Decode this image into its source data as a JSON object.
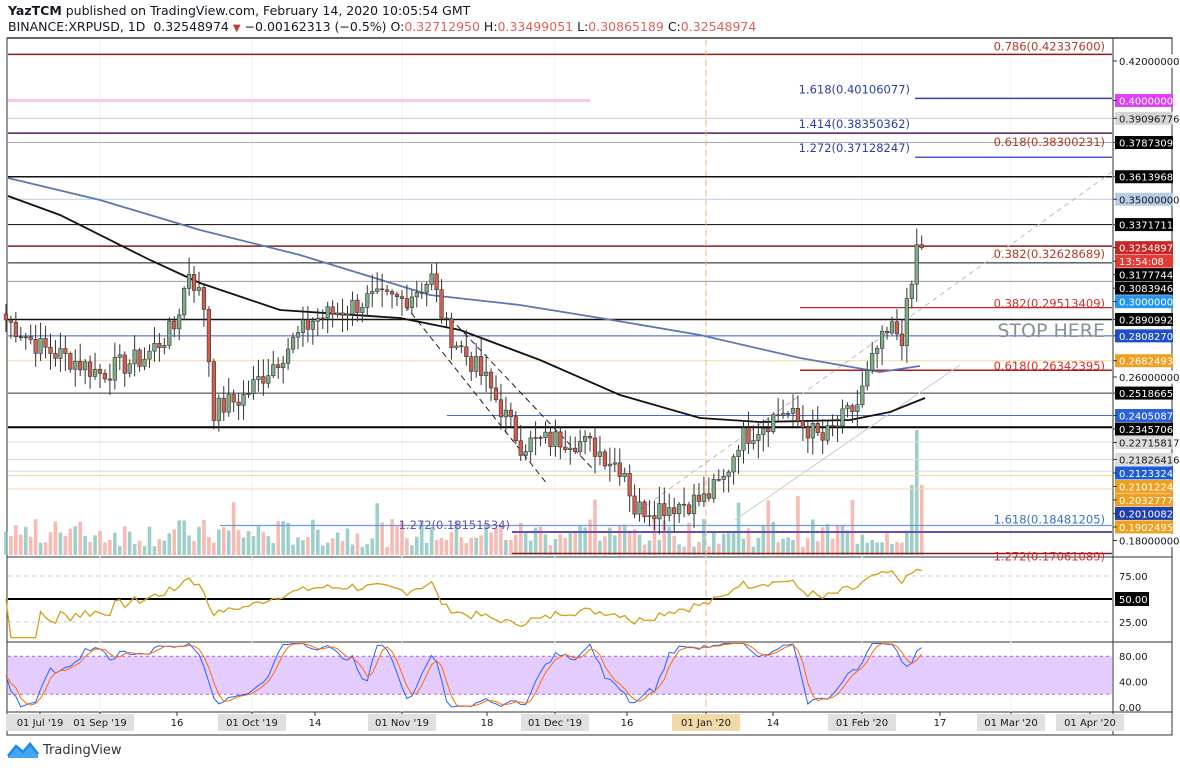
{
  "header": {
    "publisher": "YazTCM",
    "published_text": "published on TradingView.com, February 14, 2020 10:05:54 GMT",
    "symbol": "BINANCE:XRPUSD, 1D",
    "last": "0.32548974",
    "change": "−0.00162313 (−0.5%)",
    "o_label": "O:",
    "o": "0.32712950",
    "h_label": "H:",
    "h": "0.33499051",
    "l_label": "L:",
    "l": "0.30865189",
    "c_label": "C:",
    "c": "0.32548974"
  },
  "chart_data": {
    "type": "candlestick",
    "symbol": "XRPUSD",
    "interval": "1D",
    "close_waypoints": [
      [
        "2019-08-13",
        0.289
      ],
      [
        "2019-08-20",
        0.275
      ],
      [
        "2019-08-27",
        0.268
      ],
      [
        "2019-09-01",
        0.262
      ],
      [
        "2019-09-10",
        0.27
      ],
      [
        "2019-09-16",
        0.285
      ],
      [
        "2019-09-19",
        0.314
      ],
      [
        "2019-09-22",
        0.296
      ],
      [
        "2019-09-24",
        0.243
      ],
      [
        "2019-09-30",
        0.25
      ],
      [
        "2019-10-10",
        0.278
      ],
      [
        "2019-10-14",
        0.289
      ],
      [
        "2019-10-20",
        0.294
      ],
      [
        "2019-10-25",
        0.299
      ],
      [
        "2019-11-01",
        0.299
      ],
      [
        "2019-11-07",
        0.31
      ],
      [
        "2019-11-10",
        0.284
      ],
      [
        "2019-11-18",
        0.258
      ],
      [
        "2019-11-25",
        0.226
      ],
      [
        "2019-12-01",
        0.228
      ],
      [
        "2019-12-05",
        0.229
      ],
      [
        "2019-12-10",
        0.224
      ],
      [
        "2019-12-16",
        0.213
      ],
      [
        "2019-12-18",
        0.193
      ],
      [
        "2019-12-25",
        0.195
      ],
      [
        "2020-01-01",
        0.198
      ],
      [
        "2020-01-05",
        0.208
      ],
      [
        "2020-01-08",
        0.228
      ],
      [
        "2020-01-14",
        0.238
      ],
      [
        "2020-01-17",
        0.243
      ],
      [
        "2020-01-25",
        0.228
      ],
      [
        "2020-02-01",
        0.246
      ],
      [
        "2020-02-05",
        0.274
      ],
      [
        "2020-02-08",
        0.284
      ],
      [
        "2020-02-10",
        0.281
      ],
      [
        "2020-02-12",
        0.307
      ],
      [
        "2020-02-13",
        0.327
      ],
      [
        "2020-02-14",
        0.3255
      ]
    ],
    "current_price": "0.32548974",
    "countdown": "13:54:08",
    "annotation": "STOP HERE",
    "price_levels": [
      {
        "price": 0.42,
        "label": "0.42000000",
        "bg": "#ffffff",
        "fg": "#131722"
      },
      {
        "price": 0.4,
        "label": "0.40000000",
        "bg": "#e040fb",
        "fg": "#ffffff"
      },
      {
        "price": 0.39096776,
        "label": "0.39096776",
        "bg": "#d6d6d6",
        "fg": "#131722"
      },
      {
        "price": 0.37873092,
        "label": "0.37873092",
        "bg": "#000000",
        "fg": "#ffffff"
      },
      {
        "price": 0.36139684,
        "label": "0.36139684",
        "bg": "#000000",
        "fg": "#ffffff"
      },
      {
        "price": 0.35,
        "label": "0.35000000",
        "bg": "#b6cde6",
        "fg": "#131722"
      },
      {
        "price": 0.33717116,
        "label": "0.33717116",
        "bg": "#000000",
        "fg": "#ffffff"
      },
      {
        "price": 0.32548974,
        "label": "0.32548974",
        "bg": "#c62828",
        "fg": "#ffffff"
      },
      {
        "price": 0.3215,
        "label": "13:54:08",
        "bg": "#e53935",
        "fg": "#ffffff"
      },
      {
        "price": 0.31777446,
        "label": "0.31777446",
        "bg": "#000000",
        "fg": "#ffffff"
      },
      {
        "price": 0.30839463,
        "label": "0.30839463",
        "bg": "#000000",
        "fg": "#ffffff"
      },
      {
        "price": 0.3,
        "label": "0.30000000",
        "bg": "#2196f3",
        "fg": "#ffffff"
      },
      {
        "price": 0.2890992,
        "label": "0.28909920",
        "bg": "#000000",
        "fg": "#ffffff"
      },
      {
        "price": 0.28082708,
        "label": "0.28082708",
        "bg": "#1e4fc8",
        "fg": "#ffffff"
      },
      {
        "price": 0.26824935,
        "label": "0.26824935",
        "bg": "#f0a020",
        "fg": "#ffffff"
      },
      {
        "price": 0.26,
        "label": "0.26000000",
        "bg": "#ffffff",
        "fg": "#131722"
      },
      {
        "price": 0.25186656,
        "label": "0.25186656",
        "bg": "#000000",
        "fg": "#ffffff"
      },
      {
        "price": 0.2405087,
        "label": "0.24050870",
        "bg": "#2962d9",
        "fg": "#ffffff"
      },
      {
        "price": 0.23457062,
        "label": "0.23457062",
        "bg": "#000000",
        "fg": "#ffffff"
      },
      {
        "price": 0.22715817,
        "label": "0.22715817",
        "bg": "#dcdcdc",
        "fg": "#131722"
      },
      {
        "price": 0.21826416,
        "label": "0.21826416",
        "bg": "#dcdcdc",
        "fg": "#131722"
      },
      {
        "price": 0.21233245,
        "label": "0.21233245",
        "bg": "#1e5bd6",
        "fg": "#ffffff"
      },
      {
        "price": 0.21012246,
        "label": "0.21012246",
        "bg": "#f0a020",
        "fg": "#ffffff"
      },
      {
        "price": 0.2032777,
        "label": "0.20327770",
        "bg": "#f0a020",
        "fg": "#ffffff"
      },
      {
        "price": 0.20100822,
        "label": "0.20100822",
        "bg": "#1f3fb0",
        "fg": "#ffffff"
      },
      {
        "price": 0.1902495,
        "label": "0.19024950",
        "bg": "#f0a020",
        "fg": "#ffffff"
      },
      {
        "price": 0.18,
        "label": "0.18000000",
        "bg": "#ffffff",
        "fg": "#131722"
      }
    ],
    "fib_labels": [
      {
        "text": "0.786(0.42337600)",
        "price": 0.423376,
        "color": "#b23a2a"
      },
      {
        "text": "1.618(0.40106077)",
        "price": 0.40106077,
        "color": "#2c3ea8"
      },
      {
        "text": "1.414(0.38350362)",
        "price": 0.38350362,
        "color": "#2c3ea8"
      },
      {
        "text": "0.618(0.38300231)",
        "price": 0.38300231,
        "color": "#b23a2a"
      },
      {
        "text": "1.272(0.37128247)",
        "price": 0.37128247,
        "color": "#2c3ea8"
      },
      {
        "text": "0.382(0.32628689)",
        "price": 0.32628689,
        "color": "#b23a2a"
      },
      {
        "text": "0.382(0.29513409)",
        "price": 0.29513409,
        "color": "#d32f2f"
      },
      {
        "text": "0.618(0.26342395)",
        "price": 0.26342395,
        "color": "#d32f2f"
      },
      {
        "text": "1.618(0.18481205)",
        "price": 0.18481205,
        "color": "#3f6fc8"
      },
      {
        "text": "1.272(0.18151534)",
        "price": 0.18151534,
        "color": "#6a4fb0"
      },
      {
        "text": "1.272(0.17061089)",
        "price": 0.17061089,
        "color": "#d32f2f"
      }
    ],
    "x_ticks": [
      {
        "label": "01 Jul '19",
        "boxed": true
      },
      {
        "label": "01 Sep '19",
        "boxed": true
      },
      {
        "label": "16",
        "boxed": false
      },
      {
        "label": "01 Oct '19",
        "boxed": true
      },
      {
        "label": "14",
        "boxed": false
      },
      {
        "label": "01 Nov '19",
        "boxed": true
      },
      {
        "label": "18",
        "boxed": false
      },
      {
        "label": "01 Dec '19",
        "boxed": true
      },
      {
        "label": "16",
        "boxed": false
      },
      {
        "label": "01 Jan '20",
        "boxed": true,
        "highlight": true
      },
      {
        "label": "14",
        "boxed": false
      },
      {
        "label": "01 Feb '20",
        "boxed": true
      },
      {
        "label": "17",
        "boxed": false
      },
      {
        "label": "01 Mar '20",
        "boxed": true
      },
      {
        "label": "01 Apr '20",
        "boxed": true
      }
    ],
    "rsi": {
      "ticks": [
        "75.00",
        "50.00",
        "25.00"
      ],
      "midline_label": "50.00",
      "color": "#d4a017"
    },
    "stoch_rsi": {
      "ticks": [
        "80.00",
        "40.00",
        "0.00"
      ],
      "band_color": "#e5ccff",
      "k_color": "#2962ff",
      "d_color": "#ff6d00"
    },
    "colors": {
      "up": "#7fae86",
      "down": "#d35e4f",
      "ma_black": "#111111",
      "ma_blue": "#5b77b5"
    }
  },
  "footer": {
    "brand": "TradingView"
  }
}
